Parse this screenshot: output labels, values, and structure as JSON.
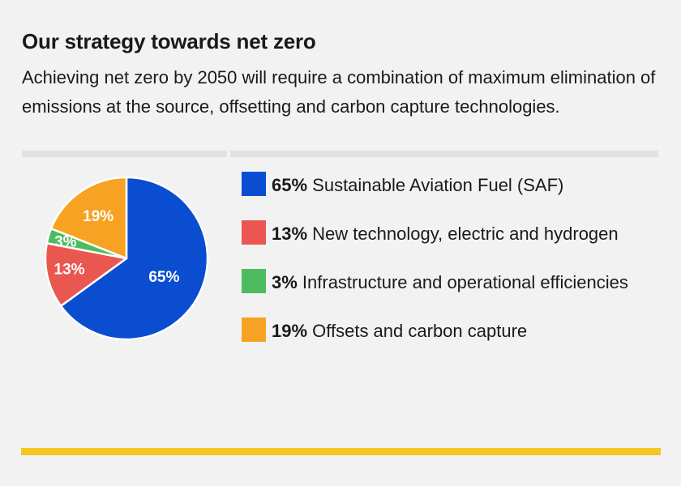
{
  "title": "Our strategy towards net zero",
  "subtitle": "Achieving net zero by 2050 will require a combination of maximum elimination of emissions at the source, offsetting and carbon capture technologies.",
  "chart_data": {
    "type": "pie",
    "slices": [
      {
        "value": 65,
        "pct_label": "65%",
        "label": "Sustainable Aviation Fuel (SAF)",
        "color": "#0b4dd1"
      },
      {
        "value": 13,
        "pct_label": "13%",
        "label": "New technology, electric and hydrogen",
        "color": "#ea5750"
      },
      {
        "value": 3,
        "pct_label": "3%",
        "label": "Infrastructure and operational efficiencies",
        "color": "#4cbc5e"
      },
      {
        "value": 19,
        "pct_label": "19%",
        "label": "Offsets and carbon capture",
        "color": "#f7a223"
      }
    ],
    "start_angle_deg": 0,
    "direction": "clockwise"
  },
  "colors": {
    "accent_bar": "#f3c623",
    "background": "#f2f2f2"
  }
}
